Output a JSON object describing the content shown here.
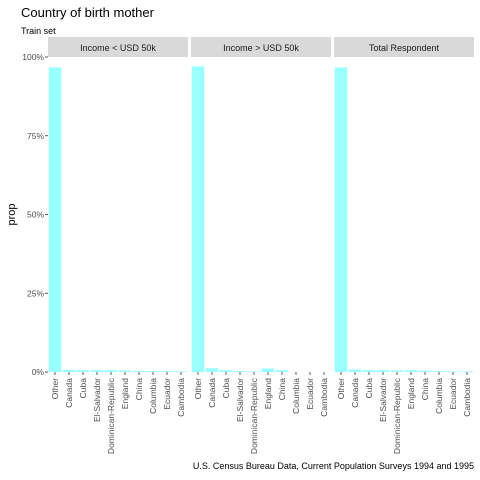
{
  "chart_data": {
    "type": "bar",
    "title": "Country of birth mother",
    "subtitle": "Train set",
    "caption": "U.S. Census Bureau Data, Current Population Surveys 1994 and 1995",
    "ylabel": "prop",
    "xlabel": "",
    "ylim": [
      0,
      1
    ],
    "yticks": [
      0,
      0.25,
      0.5,
      0.75,
      1
    ],
    "ytick_labels": [
      "0%",
      "25%",
      "50%",
      "75%",
      "100%"
    ],
    "bar_color": "#99FFFF",
    "grid": false,
    "categories": [
      "Other",
      "Canada",
      "Cuba",
      "El-Salvador",
      "Dominican-Republic",
      "England",
      "China",
      "Columbia",
      "Ecuador",
      "Cambodia"
    ],
    "panels": [
      {
        "name": "Income < USD 50k",
        "values": [
          0.967,
          0.007,
          0.006,
          0.006,
          0.006,
          0.005,
          0.003,
          0.003,
          0.003,
          0.002
        ]
      },
      {
        "name": "Income > USD 50k",
        "values": [
          0.97,
          0.012,
          0.006,
          0.003,
          0.002,
          0.011,
          0.006,
          0.0,
          0.0,
          0.0
        ]
      },
      {
        "name": "Total Respondent",
        "values": [
          0.967,
          0.008,
          0.006,
          0.006,
          0.005,
          0.006,
          0.004,
          0.003,
          0.002,
          0.002
        ]
      }
    ]
  }
}
